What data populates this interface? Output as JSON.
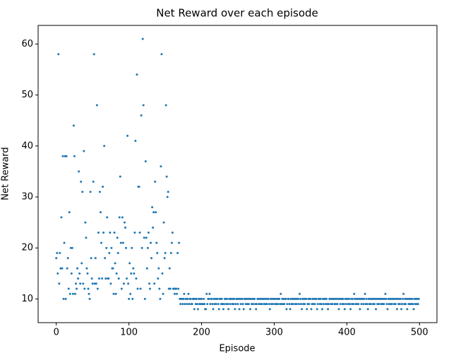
{
  "chart_data": {
    "type": "scatter",
    "title": "Net Reward over each episode",
    "x_label": "Episode",
    "y_label": "Net Reward",
    "color": "#1f77b4",
    "grid": false,
    "xlim": [
      -25,
      524
    ],
    "ylim": [
      5.35,
      63.65
    ],
    "xticks": [
      0,
      100,
      200,
      300,
      400,
      500
    ],
    "yticks": [
      10,
      20,
      30,
      40,
      50,
      60
    ],
    "x": [
      0,
      1,
      2,
      3,
      4,
      5,
      6,
      7,
      8,
      9,
      10,
      11,
      12,
      13,
      14,
      15,
      16,
      17,
      18,
      19,
      20,
      21,
      22,
      23,
      24,
      25,
      26,
      27,
      28,
      29,
      30,
      31,
      32,
      33,
      34,
      35,
      36,
      37,
      38,
      39,
      40,
      41,
      42,
      43,
      44,
      45,
      46,
      47,
      48,
      49,
      50,
      51,
      52,
      53,
      54,
      55,
      56,
      57,
      58,
      59,
      60,
      61,
      62,
      63,
      64,
      65,
      66,
      67,
      68,
      69,
      70,
      71,
      72,
      73,
      74,
      75,
      76,
      77,
      78,
      79,
      80,
      81,
      82,
      83,
      84,
      85,
      86,
      87,
      88,
      89,
      90,
      91,
      92,
      93,
      94,
      95,
      96,
      97,
      98,
      99,
      100,
      101,
      102,
      103,
      104,
      105,
      106,
      107,
      108,
      109,
      110,
      111,
      112,
      113,
      114,
      115,
      116,
      117,
      118,
      119,
      120,
      121,
      122,
      123,
      124,
      125,
      126,
      127,
      128,
      129,
      130,
      131,
      132,
      133,
      134,
      135,
      136,
      137,
      138,
      139,
      140,
      141,
      142,
      143,
      144,
      145,
      146,
      147,
      148,
      149,
      150,
      151,
      152,
      153,
      154,
      155,
      156,
      157,
      158,
      159,
      160,
      161,
      162,
      163,
      164,
      165,
      166,
      167,
      168,
      169,
      170,
      171,
      172,
      173,
      174,
      175,
      176,
      177,
      178,
      179,
      180,
      181,
      182,
      183,
      184,
      185,
      186,
      187,
      188,
      189,
      190,
      191,
      192,
      193,
      194,
      195,
      196,
      197,
      198,
      199,
      200,
      201,
      202,
      203,
      204,
      205,
      206,
      207,
      208,
      209,
      210,
      211,
      212,
      213,
      214,
      215,
      216,
      217,
      218,
      219,
      220,
      221,
      222,
      223,
      224,
      225,
      226,
      227,
      228,
      229,
      230,
      231,
      232,
      233,
      234,
      235,
      236,
      237,
      238,
      239,
      240,
      241,
      242,
      243,
      244,
      245,
      246,
      247,
      248,
      249,
      250,
      251,
      252,
      253,
      254,
      255,
      256,
      257,
      258,
      259,
      260,
      261,
      262,
      263,
      264,
      265,
      266,
      267,
      268,
      269,
      270,
      271,
      272,
      273,
      274,
      275,
      276,
      277,
      278,
      279,
      280,
      281,
      282,
      283,
      284,
      285,
      286,
      287,
      288,
      289,
      290,
      291,
      292,
      293,
      294,
      295,
      296,
      297,
      298,
      299,
      300,
      301,
      302,
      303,
      304,
      305,
      306,
      307,
      308,
      309,
      310,
      311,
      312,
      313,
      314,
      315,
      316,
      317,
      318,
      319,
      320,
      321,
      322,
      323,
      324,
      325,
      326,
      327,
      328,
      329,
      330,
      331,
      332,
      333,
      334,
      335,
      336,
      337,
      338,
      339,
      340,
      341,
      342,
      343,
      344,
      345,
      346,
      347,
      348,
      349,
      350,
      351,
      352,
      353,
      354,
      355,
      356,
      357,
      358,
      359,
      360,
      361,
      362,
      363,
      364,
      365,
      366,
      367,
      368,
      369,
      370,
      371,
      372,
      373,
      374,
      375,
      376,
      377,
      378,
      379,
      380,
      381,
      382,
      383,
      384,
      385,
      386,
      387,
      388,
      389,
      390,
      391,
      392,
      393,
      394,
      395,
      396,
      397,
      398,
      399,
      400,
      401,
      402,
      403,
      404,
      405,
      406,
      407,
      408,
      409,
      410,
      411,
      412,
      413,
      414,
      415,
      416,
      417,
      418,
      419,
      420,
      421,
      422,
      423,
      424,
      425,
      426,
      427,
      428,
      429,
      430,
      431,
      432,
      433,
      434,
      435,
      436,
      437,
      438,
      439,
      440,
      441,
      442,
      443,
      444,
      445,
      446,
      447,
      448,
      449,
      450,
      451,
      452,
      453,
      454,
      455,
      456,
      457,
      458,
      459,
      460,
      461,
      462,
      463,
      464,
      465,
      466,
      467,
      468,
      469,
      470,
      471,
      472,
      473,
      474,
      475,
      476,
      477,
      478,
      479,
      480,
      481,
      482,
      483,
      484,
      485,
      486,
      487,
      488,
      489,
      490,
      491,
      492,
      493,
      494,
      495,
      496,
      497,
      498,
      499
    ],
    "values": [
      18,
      19,
      15,
      58,
      13,
      19,
      16,
      26,
      16,
      38,
      10,
      21,
      38,
      10,
      38,
      16,
      18,
      12,
      27,
      11,
      20,
      15,
      20,
      11,
      44,
      38,
      11,
      13,
      12,
      16,
      14,
      35,
      15,
      13,
      33,
      17,
      31,
      13,
      39,
      12,
      25,
      22,
      16,
      15,
      12,
      11,
      10,
      31,
      18,
      14,
      13,
      33,
      58,
      13,
      18,
      13,
      48,
      12,
      23,
      14,
      31,
      27,
      21,
      14,
      32,
      23,
      40,
      18,
      14,
      20,
      26,
      14,
      14,
      19,
      23,
      13,
      20,
      16,
      16,
      11,
      23,
      17,
      11,
      15,
      22,
      19,
      14,
      26,
      34,
      21,
      12,
      26,
      21,
      13,
      25,
      24,
      20,
      14,
      42,
      13,
      10,
      17,
      11,
      15,
      20,
      10,
      16,
      15,
      23,
      41,
      14,
      54,
      12,
      32,
      32,
      23,
      12,
      46,
      20,
      61,
      48,
      22,
      10,
      37,
      22,
      16,
      20,
      23,
      13,
      12,
      21,
      18,
      28,
      24,
      27,
      13,
      33,
      27,
      21,
      19,
      14,
      16,
      12,
      10,
      36,
      58,
      15,
      11,
      25,
      18,
      19,
      48,
      34,
      30,
      31,
      12,
      16,
      12,
      19,
      21,
      23,
      12,
      12,
      11,
      12,
      12,
      11,
      19,
      12,
      21,
      10,
      9,
      10,
      10,
      9,
      10,
      11,
      9,
      10,
      10,
      9,
      10,
      11,
      9,
      10,
      10,
      9,
      9,
      10,
      10,
      8,
      10,
      9,
      10,
      9,
      8,
      10,
      9,
      10,
      9,
      10,
      9,
      9,
      10,
      9,
      8,
      8,
      11,
      9,
      10,
      10,
      11,
      9,
      10,
      10,
      9,
      8,
      10,
      9,
      10,
      9,
      10,
      10,
      9,
      8,
      10,
      10,
      9,
      10,
      9,
      8,
      9,
      10,
      10,
      9,
      10,
      9,
      8,
      10,
      9,
      10,
      10,
      9,
      10,
      9,
      10,
      8,
      9,
      10,
      10,
      9,
      10,
      8,
      10,
      9,
      10,
      10,
      9,
      8,
      10,
      10,
      9,
      10,
      9,
      10,
      9,
      10,
      8,
      10,
      9,
      10,
      9,
      10,
      10,
      9,
      8,
      9,
      10,
      10,
      9,
      10,
      9,
      10,
      9,
      10,
      10,
      9,
      10,
      9,
      10,
      9,
      10,
      10,
      9,
      8,
      10,
      9,
      10,
      9,
      10,
      10,
      9,
      10,
      9,
      10,
      9,
      10,
      10,
      9,
      11,
      9,
      10,
      9,
      10,
      9,
      10,
      10,
      8,
      9,
      10,
      10,
      9,
      8,
      10,
      9,
      10,
      9,
      10,
      10,
      9,
      10,
      9,
      10,
      10,
      9,
      11,
      10,
      9,
      8,
      10,
      9,
      10,
      9,
      10,
      10,
      8,
      9,
      10,
      9,
      10,
      10,
      8,
      9,
      10,
      9,
      10,
      9,
      10,
      10,
      8,
      9,
      10,
      10,
      9,
      10,
      9,
      8,
      10,
      9,
      10,
      10,
      9,
      10,
      9,
      8,
      9,
      10,
      10,
      9,
      10,
      9,
      10,
      10,
      9,
      10,
      9,
      10,
      9,
      10,
      8,
      10,
      9,
      10,
      10,
      9,
      10,
      9,
      8,
      10,
      9,
      10,
      10,
      9,
      10,
      9,
      8,
      10,
      9,
      10,
      9,
      11,
      10,
      9,
      10,
      9,
      10,
      9,
      10,
      8,
      10,
      9,
      10,
      10,
      9,
      10,
      11,
      9,
      10,
      9,
      8,
      10,
      9,
      10,
      9,
      10,
      10,
      9,
      10,
      9,
      10,
      8,
      10,
      9,
      10,
      9,
      10,
      10,
      9,
      10,
      9,
      10,
      9,
      10,
      11,
      10,
      9,
      8,
      10,
      9,
      10,
      9,
      10,
      9,
      10,
      10,
      9,
      10,
      9,
      10,
      8,
      10,
      9,
      10,
      9,
      10,
      8,
      9,
      10,
      11,
      9,
      10,
      9,
      10,
      8,
      10,
      9,
      10,
      9,
      10,
      9,
      10,
      9,
      8,
      10,
      9,
      10,
      9,
      10,
      9,
      10
    ]
  }
}
